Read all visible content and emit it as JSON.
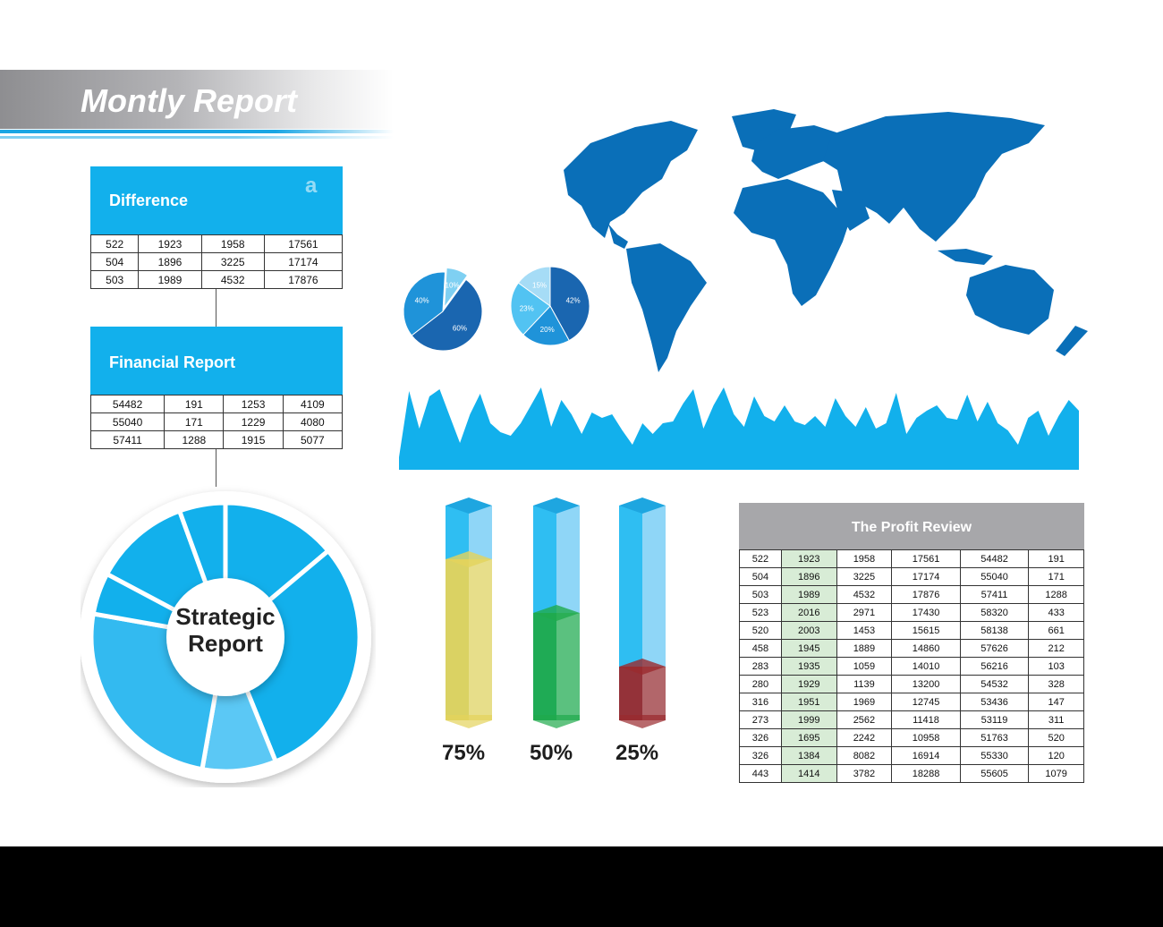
{
  "header": {
    "title": "Montly Report"
  },
  "colors": {
    "accent": "#12b0ec",
    "map": "#0a6fb8",
    "header_gray": "#a7a7aa"
  },
  "difference": {
    "title": "Difference",
    "rows": [
      [
        "522",
        "1923",
        "1958",
        "17561"
      ],
      [
        "504",
        "1896",
        "3225",
        "17174"
      ],
      [
        "503",
        "1989",
        "4532",
        "17876"
      ]
    ]
  },
  "financial": {
    "title": "Financial Report",
    "rows": [
      [
        "54482",
        "191",
        "1253",
        "4109"
      ],
      [
        "55040",
        "171",
        "1229",
        "4080"
      ],
      [
        "57411",
        "1288",
        "1915",
        "5077"
      ]
    ]
  },
  "strategic": {
    "line1": "Strategic",
    "line2": "Report"
  },
  "profit": {
    "title": "The Profit Review",
    "rows": [
      [
        "522",
        "1923",
        "1958",
        "17561",
        "54482",
        "191"
      ],
      [
        "504",
        "1896",
        "3225",
        "17174",
        "55040",
        "171"
      ],
      [
        "503",
        "1989",
        "4532",
        "17876",
        "57411",
        "1288"
      ],
      [
        "523",
        "2016",
        "2971",
        "17430",
        "58320",
        "433"
      ],
      [
        "520",
        "2003",
        "1453",
        "15615",
        "58138",
        "661"
      ],
      [
        "458",
        "1945",
        "1889",
        "14860",
        "57626",
        "212"
      ],
      [
        "283",
        "1935",
        "1059",
        "14010",
        "56216",
        "103"
      ],
      [
        "280",
        "1929",
        "1139",
        "13200",
        "54532",
        "328"
      ],
      [
        "316",
        "1951",
        "1969",
        "12745",
        "53436",
        "147"
      ],
      [
        "273",
        "1999",
        "2562",
        "11418",
        "53119",
        "311"
      ],
      [
        "326",
        "1695",
        "2242",
        "10958",
        "51763",
        "520"
      ],
      [
        "326",
        "1384",
        "8082",
        "16914",
        "55330",
        "120"
      ],
      [
        "443",
        "1414",
        "3782",
        "18288",
        "55605",
        "1079"
      ]
    ]
  },
  "chart_data": [
    {
      "type": "pie",
      "values": [
        60,
        40,
        10
      ],
      "labels": [
        "60%",
        "40%",
        "10%"
      ],
      "colors": [
        "#1a66b0",
        "#1f93d9",
        "#7fd0f2"
      ]
    },
    {
      "type": "pie",
      "values": [
        42,
        20,
        23,
        15
      ],
      "labels": [
        "42%",
        "20%",
        "23%",
        "15%"
      ],
      "colors": [
        "#1a66b0",
        "#1f93d9",
        "#52c3f2",
        "#a6dcf6"
      ]
    },
    {
      "type": "area",
      "values": [
        14,
        88,
        46,
        82,
        90,
        60,
        30,
        62,
        85,
        52,
        42,
        38,
        52,
        72,
        92,
        48,
        78,
        62,
        40,
        64,
        58,
        62,
        44,
        28,
        52,
        40,
        52,
        54,
        74,
        90,
        46,
        72,
        92,
        62,
        48,
        82,
        60,
        54,
        72,
        54,
        50,
        60,
        48,
        80,
        60,
        48,
        70,
        46,
        52,
        86,
        40,
        58,
        66,
        72,
        58,
        56,
        84,
        54,
        76,
        52,
        44,
        28,
        58,
        66,
        38,
        60,
        78,
        66
      ],
      "ylim": [
        0,
        100
      ]
    },
    {
      "type": "bar",
      "categories": [
        "75%",
        "50%",
        "25%"
      ],
      "values": [
        75,
        50,
        25
      ],
      "ylim": [
        0,
        100
      ],
      "colors": [
        "#e4d35b",
        "#1faa4c",
        "#9a2a2e"
      ]
    }
  ]
}
